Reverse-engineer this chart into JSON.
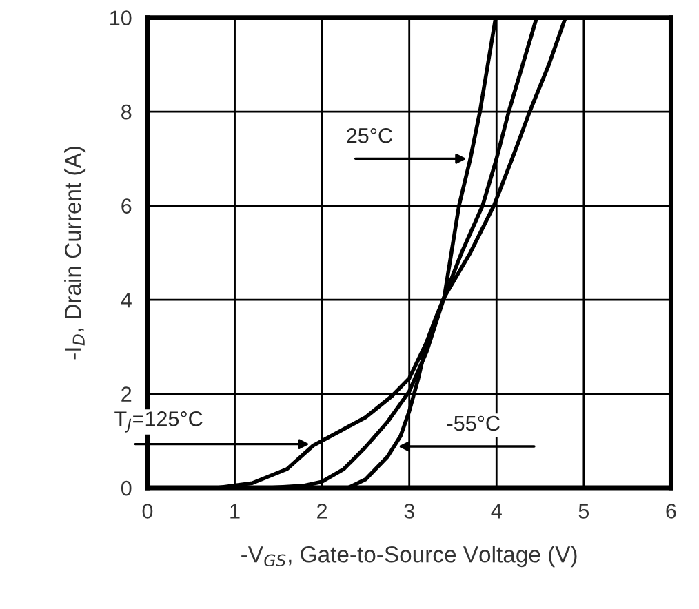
{
  "chart_data": {
    "type": "line",
    "xlabel": "-V$_{GS}$, Gate-to-Source Voltage (V)",
    "ylabel": "-I$_{D}$, Drain Current (A)",
    "xlim": [
      0,
      6
    ],
    "xticks": [
      0,
      1,
      2,
      3,
      4,
      5,
      6
    ],
    "ylim": [
      0,
      10
    ],
    "yticks": [
      0,
      2,
      4,
      6,
      8,
      10
    ],
    "grid": true,
    "legend": false,
    "marker": "none",
    "line_style": "solid",
    "series": [
      {
        "color": "#000000",
        "x": [
          0.8,
          1.2,
          1.6,
          1.9,
          2.2,
          2.5,
          2.8,
          3.0,
          3.2,
          3.4,
          3.7,
          3.97,
          4.2,
          4.38,
          4.6,
          4.79
        ],
        "values": [
          0,
          0.1,
          0.4,
          0.9,
          1.2,
          1.5,
          1.95,
          2.33,
          3.1,
          4.05,
          5.0,
          6.0,
          7.1,
          8.0,
          9.0,
          10.0
        ]
      },
      {
        "color": "#000000",
        "x": [
          1.4,
          1.8,
          2.0,
          2.25,
          2.5,
          2.75,
          3.0,
          3.2,
          3.4,
          3.6,
          3.84,
          4.0,
          4.14,
          4.3,
          4.46
        ],
        "values": [
          0,
          0.05,
          0.13,
          0.4,
          0.87,
          1.4,
          2.05,
          2.9,
          4.05,
          5.0,
          6.0,
          7.0,
          8.0,
          9.0,
          10.0
        ]
      },
      {
        "color": "#000000",
        "x": [
          2.3,
          2.5,
          2.75,
          2.9,
          3.0,
          3.1,
          3.2,
          3.3,
          3.4,
          3.57,
          3.7,
          3.81,
          3.9,
          3.99
        ],
        "values": [
          0,
          0.18,
          0.66,
          1.1,
          1.63,
          2.3,
          3.1,
          3.6,
          4.05,
          6.0,
          7.0,
          8.0,
          9.0,
          10.0
        ]
      }
    ],
    "annotations": [
      {
        "text": "25°C",
        "x": 3.7,
        "y": 7.0
      },
      {
        "text": "T$_{J}$=125°C",
        "x": 1.9,
        "y": 0.93
      },
      {
        "text": "-55°C",
        "x": 2.83,
        "y": 0.88
      }
    ]
  }
}
